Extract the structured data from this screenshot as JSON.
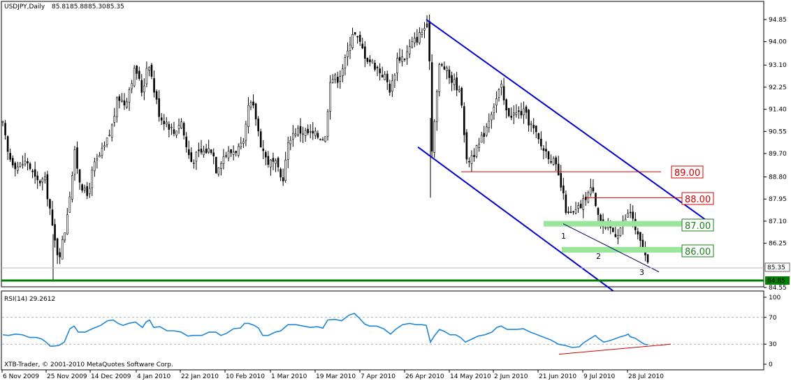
{
  "chart_data": {
    "type": "candlestick",
    "title": "USDJPY,Daily",
    "ohlc": [
      "85.81",
      "85.88",
      "85.30",
      "85.35"
    ],
    "copyright": "XTB-Trader, © 2001-2010 MetaQuotes Software Corp.",
    "price_axis": {
      "ylim": [
        84.37,
        95.15
      ],
      "ticks": [
        "94.85",
        "94.00",
        "93.10",
        "92.25",
        "91.40",
        "90.55",
        "89.70",
        "88.80",
        "87.95",
        "87.10",
        "86.25",
        "85.35",
        "84.85",
        "84.55"
      ],
      "current_price": "85.35",
      "support_line_label": "84.85"
    },
    "x_labels": [
      "6 Nov 2009",
      "25 Nov 2009",
      "14 Dec 2009",
      "4 Jan 2010",
      "22 Jan 2010",
      "10 Feb 2010",
      "1 Mar 2010",
      "19 Mar 2010",
      "7 Apr 2010",
      "26 Apr 2010",
      "14 May 2010",
      "2 Jun 2010",
      "21 Jun 2010",
      "9 Jul 2010",
      "28 Jul 2010"
    ],
    "price_path": [
      [
        0,
        90.8
      ],
      [
        8,
        89.6
      ],
      [
        20,
        89.2
      ],
      [
        35,
        89.4
      ],
      [
        48,
        88.6
      ],
      [
        60,
        88.7
      ],
      [
        68,
        87.5
      ],
      [
        72,
        86.6
      ],
      [
        80,
        85.7
      ],
      [
        88,
        86.6
      ],
      [
        98,
        88.6
      ],
      [
        103,
        89.7
      ],
      [
        110,
        88.7
      ],
      [
        120,
        88.0
      ],
      [
        130,
        89.2
      ],
      [
        145,
        89.9
      ],
      [
        155,
        90.6
      ],
      [
        165,
        91.9
      ],
      [
        175,
        91.6
      ],
      [
        185,
        92.6
      ],
      [
        190,
        93.0
      ],
      [
        200,
        92.0
      ],
      [
        208,
        93.4
      ],
      [
        216,
        92.2
      ],
      [
        225,
        91.1
      ],
      [
        235,
        90.9
      ],
      [
        245,
        90.5
      ],
      [
        255,
        91.0
      ],
      [
        263,
        89.9
      ],
      [
        270,
        89.4
      ],
      [
        280,
        89.7
      ],
      [
        290,
        89.8
      ],
      [
        300,
        89.9
      ],
      [
        305,
        89.1
      ],
      [
        315,
        89.6
      ],
      [
        330,
        89.8
      ],
      [
        345,
        90.0
      ],
      [
        352,
        91.6
      ],
      [
        360,
        91.4
      ],
      [
        368,
        90.2
      ],
      [
        378,
        89.4
      ],
      [
        390,
        89.3
      ],
      [
        400,
        88.6
      ],
      [
        410,
        90.3
      ],
      [
        420,
        90.6
      ],
      [
        435,
        90.5
      ],
      [
        448,
        90.4
      ],
      [
        462,
        90.3
      ],
      [
        468,
        92.6
      ],
      [
        480,
        92.6
      ],
      [
        492,
        93.4
      ],
      [
        500,
        94.4
      ],
      [
        508,
        94.1
      ],
      [
        520,
        93.4
      ],
      [
        532,
        93.1
      ],
      [
        548,
        92.6
      ],
      [
        555,
        92.1
      ],
      [
        565,
        93.4
      ],
      [
        575,
        93.4
      ],
      [
        585,
        93.9
      ],
      [
        595,
        94.2
      ],
      [
        605,
        94.6
      ],
      [
        610,
        94.4
      ],
      [
        613,
        89.4
      ],
      [
        618,
        91.2
      ],
      [
        625,
        93.1
      ],
      [
        632,
        93.0
      ],
      [
        640,
        92.6
      ],
      [
        650,
        92.3
      ],
      [
        658,
        91.6
      ],
      [
        663,
        89.3
      ],
      [
        670,
        89.6
      ],
      [
        680,
        89.9
      ],
      [
        690,
        90.6
      ],
      [
        700,
        91.4
      ],
      [
        708,
        91.9
      ],
      [
        713,
        92.3
      ],
      [
        720,
        91.3
      ],
      [
        730,
        91.2
      ],
      [
        745,
        91.3
      ],
      [
        760,
        90.6
      ],
      [
        770,
        90.0
      ],
      [
        780,
        89.7
      ],
      [
        790,
        89.3
      ],
      [
        800,
        88.3
      ],
      [
        808,
        87.3
      ],
      [
        818,
        87.4
      ],
      [
        828,
        87.7
      ],
      [
        835,
        88.1
      ],
      [
        845,
        88.4
      ],
      [
        850,
        87.6
      ],
      [
        857,
        87.0
      ],
      [
        862,
        86.7
      ],
      [
        870,
        86.8
      ],
      [
        878,
        86.6
      ],
      [
        885,
        86.9
      ],
      [
        893,
        87.3
      ],
      [
        900,
        87.5
      ],
      [
        905,
        86.7
      ],
      [
        912,
        86.3
      ],
      [
        918,
        85.9
      ],
      [
        923,
        85.35
      ]
    ],
    "annotations": {
      "levels": [
        {
          "label": "89.00",
          "color": "#d40000",
          "value": 89.0
        },
        {
          "label": "88.00",
          "color": "#d40000",
          "value": 88.0
        },
        {
          "label": "87.00",
          "color": "#1a7f1a",
          "value": 87.0
        },
        {
          "label": "86.00",
          "color": "#1a7f1a",
          "value": 86.0
        }
      ],
      "wave_labels": [
        "1",
        "2",
        "3"
      ],
      "channel_color": "#0000cc"
    },
    "rsi": {
      "title": "RSI(14) 29.2612",
      "ticks": [
        "100",
        "70",
        "30",
        "0"
      ],
      "levels": [
        70,
        30
      ],
      "color": "#1f86d6",
      "path": [
        [
          0,
          44
        ],
        [
          8,
          43
        ],
        [
          18,
          45
        ],
        [
          28,
          44
        ],
        [
          38,
          40
        ],
        [
          48,
          40
        ],
        [
          55,
          38
        ],
        [
          62,
          33
        ],
        [
          68,
          27
        ],
        [
          72,
          27
        ],
        [
          80,
          28
        ],
        [
          88,
          33
        ],
        [
          96,
          53
        ],
        [
          102,
          57
        ],
        [
          108,
          48
        ],
        [
          118,
          48
        ],
        [
          128,
          53
        ],
        [
          140,
          58
        ],
        [
          150,
          65
        ],
        [
          158,
          66
        ],
        [
          165,
          61
        ],
        [
          172,
          58
        ],
        [
          180,
          61
        ],
        [
          190,
          63
        ],
        [
          196,
          58
        ],
        [
          200,
          55
        ],
        [
          205,
          63
        ],
        [
          210,
          66
        ],
        [
          216,
          55
        ],
        [
          225,
          56
        ],
        [
          235,
          50
        ],
        [
          245,
          50
        ],
        [
          255,
          48
        ],
        [
          265,
          42
        ],
        [
          272,
          43
        ],
        [
          285,
          43
        ],
        [
          295,
          48
        ],
        [
          305,
          48
        ],
        [
          312,
          43
        ],
        [
          320,
          46
        ],
        [
          330,
          53
        ],
        [
          340,
          54
        ],
        [
          346,
          61
        ],
        [
          352,
          61
        ],
        [
          360,
          58
        ],
        [
          366,
          54
        ],
        [
          372,
          43
        ],
        [
          380,
          43
        ],
        [
          390,
          48
        ],
        [
          398,
          50
        ],
        [
          408,
          59
        ],
        [
          420,
          59
        ],
        [
          430,
          57
        ],
        [
          440,
          55
        ],
        [
          450,
          56
        ],
        [
          458,
          54
        ],
        [
          465,
          66
        ],
        [
          475,
          67
        ],
        [
          485,
          65
        ],
        [
          495,
          73
        ],
        [
          503,
          76
        ],
        [
          510,
          69
        ],
        [
          518,
          60
        ],
        [
          525,
          57
        ],
        [
          535,
          57
        ],
        [
          545,
          53
        ],
        [
          555,
          45
        ],
        [
          562,
          52
        ],
        [
          572,
          59
        ],
        [
          582,
          61
        ],
        [
          592,
          59
        ],
        [
          600,
          59
        ],
        [
          606,
          58
        ],
        [
          612,
          33
        ],
        [
          618,
          43
        ],
        [
          625,
          52
        ],
        [
          632,
          49
        ],
        [
          640,
          44
        ],
        [
          648,
          44
        ],
        [
          655,
          40
        ],
        [
          662,
          33
        ],
        [
          670,
          37
        ],
        [
          680,
          42
        ],
        [
          690,
          44
        ],
        [
          700,
          48
        ],
        [
          707,
          55
        ],
        [
          713,
          57
        ],
        [
          722,
          52
        ],
        [
          735,
          52
        ],
        [
          745,
          53
        ],
        [
          755,
          48
        ],
        [
          765,
          44
        ],
        [
          775,
          40
        ],
        [
          785,
          36
        ],
        [
          795,
          30
        ],
        [
          805,
          28
        ],
        [
          815,
          25
        ],
        [
          825,
          26
        ],
        [
          830,
          31
        ],
        [
          840,
          38
        ],
        [
          848,
          43
        ],
        [
          852,
          39
        ],
        [
          860,
          33
        ],
        [
          868,
          35
        ],
        [
          876,
          38
        ],
        [
          884,
          41
        ],
        [
          891,
          43
        ],
        [
          895,
          45
        ],
        [
          898,
          41
        ],
        [
          905,
          39
        ],
        [
          912,
          34
        ],
        [
          918,
          30
        ],
        [
          923,
          29
        ]
      ]
    }
  }
}
